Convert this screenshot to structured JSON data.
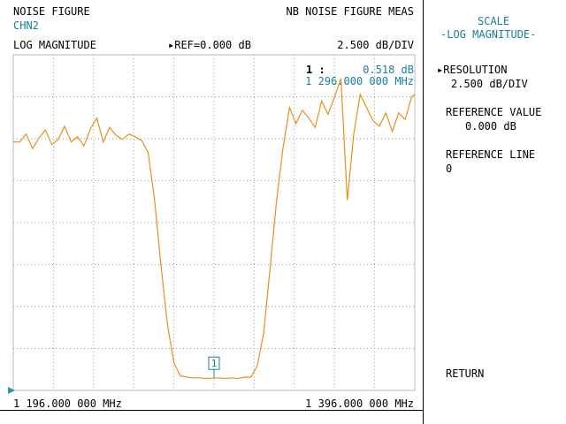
{
  "header": {
    "meas_name": "NOISE FIGURE",
    "channel": "CHN2",
    "meas_type": "NB NOISE FIGURE MEAS",
    "format": "LOG MAGNITUDE",
    "ref_marker": "▸",
    "ref": "REF=0.000 dB",
    "scale": "2.500 dB/DIV"
  },
  "marker": {
    "label": "1 :",
    "value": "0.518 dB",
    "freq": "1 296.000 000 MHz",
    "tag": "1",
    "freq_mhz": 1296.0
  },
  "footer": {
    "start": "1 196.000 000 MHz",
    "stop": "1 396.000 000 MHz"
  },
  "softkeys": {
    "title1": "SCALE",
    "title2": "-LOG MAGNITUDE-",
    "resolution_label": "RESOLUTION",
    "resolution_value": "2.500 dB/DIV",
    "ref_value_label": "REFERENCE VALUE",
    "ref_value": "0.000 dB",
    "ref_line_label": "REFERENCE LINE",
    "ref_line": "0",
    "return_label": "RETURN"
  },
  "colors": {
    "trace": "#e8901c",
    "grid": "#9a9a9a",
    "annotation": "#1a7fa0",
    "frame": "#b8b8b8"
  },
  "chart_data": {
    "type": "line",
    "x_unit": "MHz",
    "y_unit": "dB",
    "xlim": [
      1196.0,
      1396.0
    ],
    "ylim": [
      0.0,
      25.0
    ],
    "grid": true,
    "x": [
      1196.0,
      1199.2,
      1202.4,
      1205.6,
      1208.8,
      1212.0,
      1215.2,
      1218.4,
      1221.6,
      1224.8,
      1228.0,
      1231.2,
      1234.4,
      1237.6,
      1240.8,
      1244.0,
      1247.2,
      1250.4,
      1253.6,
      1256.8,
      1260.0,
      1263.2,
      1266.4,
      1269.6,
      1272.8,
      1276.0,
      1279.2,
      1282.4,
      1285.6,
      1288.8,
      1292.0,
      1295.2,
      1298.4,
      1301.6,
      1304.8,
      1308.0,
      1311.2,
      1314.4,
      1317.6,
      1320.8,
      1324.0,
      1327.2,
      1330.4,
      1333.6,
      1336.8,
      1340.0,
      1343.2,
      1346.4,
      1349.6,
      1352.8,
      1356.0,
      1359.2,
      1362.4,
      1365.6,
      1368.8,
      1372.0,
      1375.2,
      1378.4,
      1381.6,
      1384.8,
      1388.0,
      1391.2,
      1394.4,
      1396.0
    ],
    "y": [
      18.4,
      18.4,
      19.0,
      17.9,
      18.7,
      19.3,
      18.2,
      18.6,
      19.6,
      18.4,
      18.8,
      18.1,
      19.4,
      20.2,
      18.4,
      19.5,
      18.9,
      18.6,
      19.0,
      18.8,
      18.5,
      17.6,
      14.0,
      9.0,
      4.6,
      1.7,
      0.7,
      0.6,
      0.55,
      0.55,
      0.5,
      0.52,
      0.55,
      0.5,
      0.55,
      0.5,
      0.6,
      0.6,
      1.5,
      4.0,
      9.0,
      14.0,
      18.0,
      21.0,
      19.8,
      20.8,
      20.2,
      19.5,
      21.5,
      20.5,
      21.8,
      23.2,
      14.0,
      19.0,
      22.0,
      21.0,
      20.0,
      19.6,
      20.6,
      19.2,
      20.6,
      20.1,
      21.8,
      22.0
    ]
  }
}
